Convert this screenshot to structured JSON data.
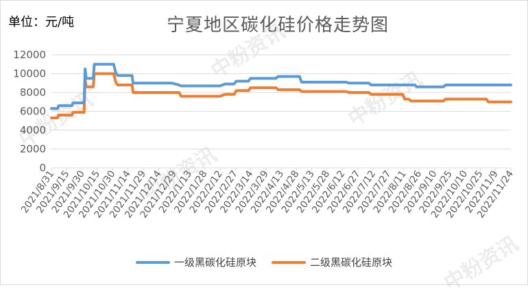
{
  "unit_label": "单位：元/吨",
  "watermark_text": "中粉资讯",
  "colors": {
    "series1": "#5b9bd5",
    "series2": "#ed7d31",
    "grid": "#d9d9d9",
    "axis_text": "#595959"
  },
  "chart_data": {
    "type": "line",
    "title": "宁夏地区碳化硅价格走势图",
    "xlabel": "",
    "ylabel": "",
    "ylim": [
      0,
      12000
    ],
    "yticks": [
      0,
      2000,
      4000,
      6000,
      8000,
      10000,
      12000
    ],
    "grid": true,
    "legend_position": "bottom",
    "x_start": "2021/8/31",
    "x_end": "2022/11/24",
    "x_tick_labels": [
      "2021/8/31",
      "2021/9/15",
      "2021/9/30",
      "2021/10/15",
      "2021/10/30",
      "2021/11/14",
      "2021/11/29",
      "2021/12/14",
      "2021/12/29",
      "2022/1/13",
      "2022/1/28",
      "2022/2/12",
      "2022/2/27",
      "2022/3/14",
      "2022/3/29",
      "2022/4/13",
      "2022/4/28",
      "2022/5/13",
      "2022/5/28",
      "2022/6/12",
      "2022/6/27",
      "2022/7/12",
      "2022/7/27",
      "2022/8/11",
      "2022/8/26",
      "2022/9/10",
      "2022/9/25",
      "2022/10/10",
      "2022/10/25",
      "2022/11/9",
      "2022/11/24"
    ],
    "series": [
      {
        "name": "一级黑碳化硅原块",
        "points": [
          [
            "2021/8/31",
            6300
          ],
          [
            "2021/9/6",
            6300
          ],
          [
            "2021/9/7",
            6600
          ],
          [
            "2021/9/20",
            6600
          ],
          [
            "2021/9/21",
            6900
          ],
          [
            "2021/10/2",
            6900
          ],
          [
            "2021/10/3",
            10500
          ],
          [
            "2021/10/4",
            9500
          ],
          [
            "2021/10/11",
            9500
          ],
          [
            "2021/10/12",
            11000
          ],
          [
            "2021/10/31",
            11000
          ],
          [
            "2021/11/2",
            10100
          ],
          [
            "2021/11/4",
            9800
          ],
          [
            "2021/11/18",
            9800
          ],
          [
            "2021/11/19",
            9000
          ],
          [
            "2021/12/27",
            9000
          ],
          [
            "2022/1/3",
            8800
          ],
          [
            "2022/1/5",
            8700
          ],
          [
            "2022/2/12",
            8700
          ],
          [
            "2022/2/17",
            8900
          ],
          [
            "2022/2/26",
            8900
          ],
          [
            "2022/2/28",
            9200
          ],
          [
            "2022/3/12",
            9200
          ],
          [
            "2022/3/14",
            9500
          ],
          [
            "2022/4/8",
            9500
          ],
          [
            "2022/4/10",
            9700
          ],
          [
            "2022/5/1",
            9700
          ],
          [
            "2022/5/3",
            9100
          ],
          [
            "2022/6/16",
            9100
          ],
          [
            "2022/6/18",
            9000
          ],
          [
            "2022/7/8",
            9000
          ],
          [
            "2022/7/10",
            8800
          ],
          [
            "2022/8/22",
            8800
          ],
          [
            "2022/8/24",
            8600
          ],
          [
            "2022/9/19",
            8600
          ],
          [
            "2022/9/21",
            8800
          ],
          [
            "2022/11/24",
            8800
          ]
        ]
      },
      {
        "name": "二级黑碳化硅原块",
        "points": [
          [
            "2021/8/31",
            5300
          ],
          [
            "2021/9/6",
            5300
          ],
          [
            "2021/9/7",
            5600
          ],
          [
            "2021/9/20",
            5600
          ],
          [
            "2021/9/21",
            5900
          ],
          [
            "2021/10/2",
            5900
          ],
          [
            "2021/10/3",
            9400
          ],
          [
            "2021/10/4",
            8600
          ],
          [
            "2021/10/11",
            8600
          ],
          [
            "2021/10/12",
            10000
          ],
          [
            "2021/10/31",
            10000
          ],
          [
            "2021/11/2",
            9100
          ],
          [
            "2021/11/4",
            8800
          ],
          [
            "2021/11/18",
            8800
          ],
          [
            "2021/11/19",
            8000
          ],
          [
            "2022/1/3",
            8000
          ],
          [
            "2022/1/5",
            7600
          ],
          [
            "2022/2/12",
            7600
          ],
          [
            "2022/2/17",
            7800
          ],
          [
            "2022/2/26",
            7800
          ],
          [
            "2022/2/28",
            8200
          ],
          [
            "2022/3/12",
            8200
          ],
          [
            "2022/3/14",
            8500
          ],
          [
            "2022/4/8",
            8500
          ],
          [
            "2022/4/10",
            8300
          ],
          [
            "2022/5/1",
            8300
          ],
          [
            "2022/5/3",
            8100
          ],
          [
            "2022/6/16",
            8100
          ],
          [
            "2022/6/18",
            8000
          ],
          [
            "2022/7/8",
            8000
          ],
          [
            "2022/7/10",
            7800
          ],
          [
            "2022/8/10",
            7800
          ],
          [
            "2022/8/12",
            7300
          ],
          [
            "2022/8/16",
            7300
          ],
          [
            "2022/8/18",
            7100
          ],
          [
            "2022/9/19",
            7100
          ],
          [
            "2022/9/21",
            7300
          ],
          [
            "2022/10/31",
            7300
          ],
          [
            "2022/11/2",
            7000
          ],
          [
            "2022/11/24",
            7000
          ]
        ]
      }
    ]
  }
}
